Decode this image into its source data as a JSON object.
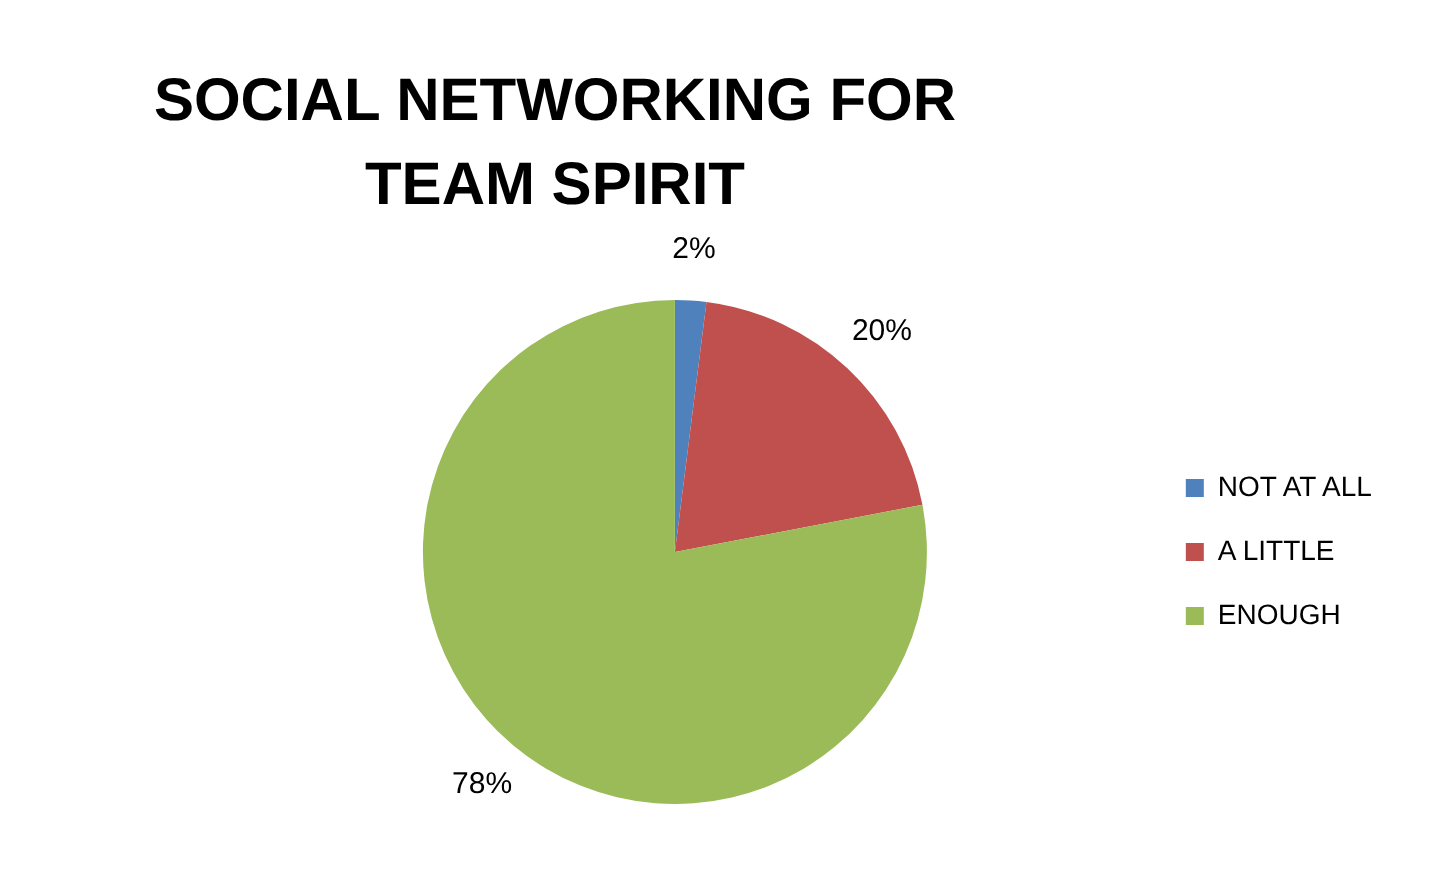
{
  "chart_data": {
    "type": "pie",
    "title": "SOCIAL NETWORKING FOR TEAM SPIRIT",
    "categories": [
      "NOT AT ALL",
      "A LITTLE",
      "ENOUGH"
    ],
    "values": [
      2,
      20,
      78
    ],
    "colors": [
      "#4f81bd",
      "#c0504d",
      "#9bbb59"
    ],
    "value_labels": [
      "2%",
      "20%",
      "78%"
    ],
    "legend": "right"
  }
}
